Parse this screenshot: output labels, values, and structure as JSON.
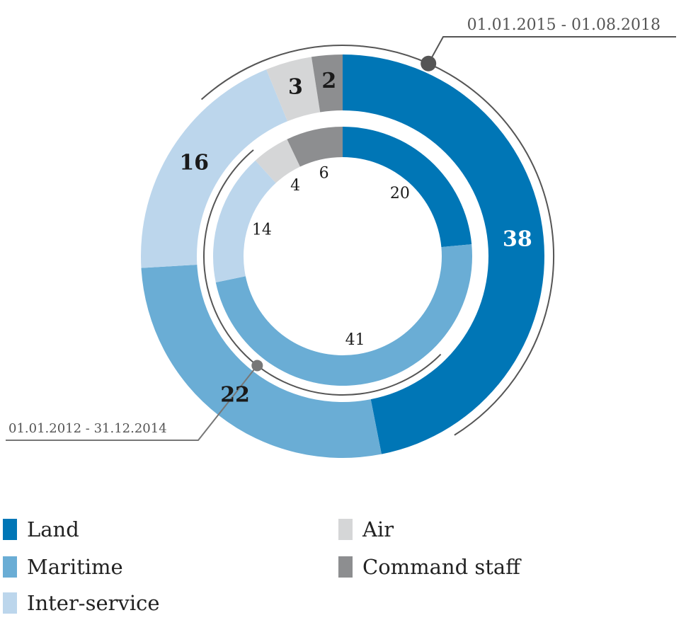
{
  "chart_data": {
    "type": "donut",
    "categories": [
      "Land",
      "Maritime",
      "Inter-service",
      "Air",
      "Command staff"
    ],
    "colors": {
      "Land": "#0076b6",
      "Maritime": "#6aadd5",
      "Inter-service": "#bcd6ec",
      "Air": "#d5d6d7",
      "Command staff": "#8d8e90"
    },
    "series": [
      {
        "name": "01.01.2015 - 01.08.2018",
        "ring": "outer",
        "values": [
          38,
          22,
          16,
          3,
          2
        ]
      },
      {
        "name": "01.01.2012 - 31.12.2014",
        "ring": "inner",
        "values": [
          20,
          41,
          14,
          4,
          6
        ]
      }
    ],
    "legend_position": "bottom"
  },
  "legend": {
    "items": [
      {
        "label": "Land",
        "color": "#0076b6"
      },
      {
        "label": "Maritime",
        "color": "#6aadd5"
      },
      {
        "label": "Inter-service",
        "color": "#bcd6ec"
      },
      {
        "label": "Air",
        "color": "#d5d6d7"
      },
      {
        "label": "Command staff",
        "color": "#8d8e90"
      }
    ]
  }
}
